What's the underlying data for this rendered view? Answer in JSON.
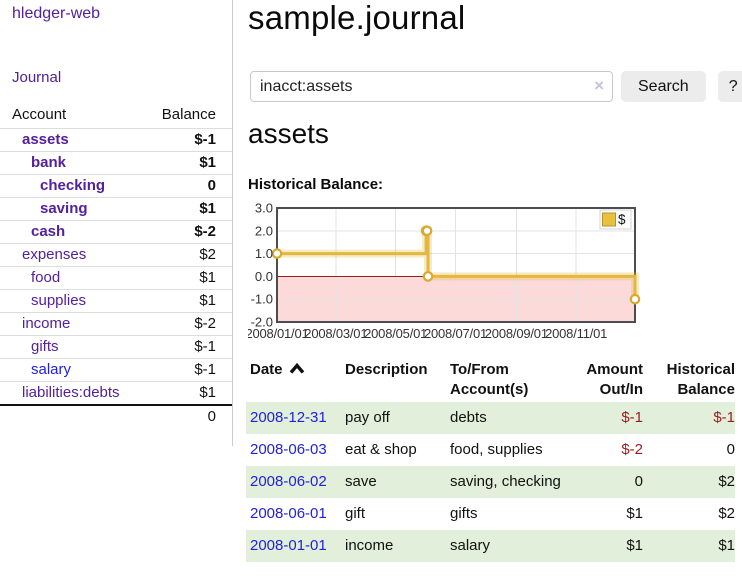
{
  "colors": {
    "link_purple": "#54209c",
    "link_blue": "#2121dd",
    "negative_strong": "#9b1c1c",
    "negative_soft": "#c17070",
    "row_green": "#e2efdb",
    "chart_line": "#e3b83f",
    "chart_marker_stroke": "#d9a930",
    "chart_area_negative": "#fcdada",
    "chart_zero_line": "#9b1c1c",
    "chart_border": "#4d4d4d",
    "chart_grid": "#e3e3e3",
    "legend_square": "#e8c13f"
  },
  "sidebar": {
    "app_title": "hledger-web",
    "nav": {
      "journal": "Journal"
    },
    "accounts_table": {
      "headers": {
        "account": "Account",
        "balance": "Balance"
      },
      "rows": [
        {
          "account": "assets",
          "balance": "$-1",
          "indent": 0,
          "bold": true,
          "link_color": "purple",
          "balance_color": "negative"
        },
        {
          "account": "bank",
          "balance": "$1",
          "indent": 1,
          "bold": true,
          "link_color": "purple",
          "balance_color": "default"
        },
        {
          "account": "checking",
          "balance": "0",
          "indent": 2,
          "bold": true,
          "link_color": "purple",
          "balance_color": "default"
        },
        {
          "account": "saving",
          "balance": "$1",
          "indent": 2,
          "bold": true,
          "link_color": "purple",
          "balance_color": "default"
        },
        {
          "account": "cash",
          "balance": "$-2",
          "indent": 1,
          "bold": true,
          "link_color": "purple",
          "balance_color": "negative"
        },
        {
          "account": "expenses",
          "balance": "$2",
          "indent": 0,
          "bold": false,
          "link_color": "purple",
          "balance_color": "default"
        },
        {
          "account": "food",
          "balance": "$1",
          "indent": 1,
          "bold": false,
          "link_color": "purple",
          "balance_color": "default"
        },
        {
          "account": "supplies",
          "balance": "$1",
          "indent": 1,
          "bold": false,
          "link_color": "purple",
          "balance_color": "default"
        },
        {
          "account": "income",
          "balance": "$-2",
          "indent": 0,
          "bold": false,
          "link_color": "purple",
          "balance_color": "negative_soft"
        },
        {
          "account": "gifts",
          "balance": "$-1",
          "indent": 1,
          "bold": false,
          "link_color": "purple",
          "balance_color": "negative_soft"
        },
        {
          "account": "salary",
          "balance": "$-1",
          "indent": 1,
          "bold": false,
          "link_color": "blue",
          "balance_color": "negative_soft"
        },
        {
          "account": "liabilities:debts",
          "balance": "$1",
          "indent": 0,
          "bold": false,
          "link_color": "purple",
          "balance_color": "default"
        }
      ],
      "total": "0"
    }
  },
  "main": {
    "title": "sample.journal",
    "search": {
      "value": "inacct:assets",
      "clear_label": "×",
      "search_button": "Search",
      "help_button": "?"
    },
    "section_heading": "assets"
  },
  "chart_data": {
    "type": "line",
    "step": true,
    "title": "Historical Balance:",
    "legend": [
      {
        "label": "$"
      }
    ],
    "legend_position": "top-right",
    "x": [
      "2008-01-01",
      "2008-06-01",
      "2008-06-02",
      "2008-06-03",
      "2008-12-31"
    ],
    "values": [
      1,
      2,
      2,
      0,
      -1
    ],
    "xrange": [
      "2008-01-01",
      "2008-12-31"
    ],
    "ylim": [
      -2,
      3
    ],
    "yticks": [
      "3.0",
      "2.0",
      "1.0",
      "0.0",
      "-1.0",
      "-2.0"
    ],
    "xticks": [
      {
        "label": "2008/01/01",
        "date": "2008-01-01"
      },
      {
        "label": "2008/03/01",
        "date": "2008-03-01"
      },
      {
        "label": "2008/05/01",
        "date": "2008-05-01"
      },
      {
        "label": "2008/07/01",
        "date": "2008-07-01"
      },
      {
        "label": "2008/09/01",
        "date": "2008-09-01"
      },
      {
        "label": "2008/11/01",
        "date": "2008-11-01"
      }
    ],
    "grid": true,
    "negative_region_shaded": true
  },
  "register": {
    "headers": [
      {
        "label": "Date",
        "sort_icon": "chevron-up",
        "align": "left"
      },
      {
        "label": "Description",
        "align": "left"
      },
      {
        "label": "To/From Account(s)",
        "align": "left"
      },
      {
        "label": "Amount Out/In",
        "align": "right"
      },
      {
        "label": "Historical Balance",
        "align": "right"
      }
    ],
    "rows": [
      {
        "date": "2008-12-31",
        "description": "pay off",
        "accounts": "debts",
        "amount": "$-1",
        "amount_negative": true,
        "balance": "$-1",
        "balance_negative": true
      },
      {
        "date": "2008-06-03",
        "description": "eat & shop",
        "accounts": "food, supplies",
        "amount": "$-2",
        "amount_negative": true,
        "balance": "0",
        "balance_negative": false
      },
      {
        "date": "2008-06-02",
        "description": "save",
        "accounts": "saving, checking",
        "amount": "0",
        "amount_negative": false,
        "balance": "$2",
        "balance_negative": false
      },
      {
        "date": "2008-06-01",
        "description": "gift",
        "accounts": "gifts",
        "amount": "$1",
        "amount_negative": false,
        "balance": "$2",
        "balance_negative": false
      },
      {
        "date": "2008-01-01",
        "description": "income",
        "accounts": "salary",
        "amount": "$1",
        "amount_negative": false,
        "balance": "$1",
        "balance_negative": false
      }
    ]
  }
}
